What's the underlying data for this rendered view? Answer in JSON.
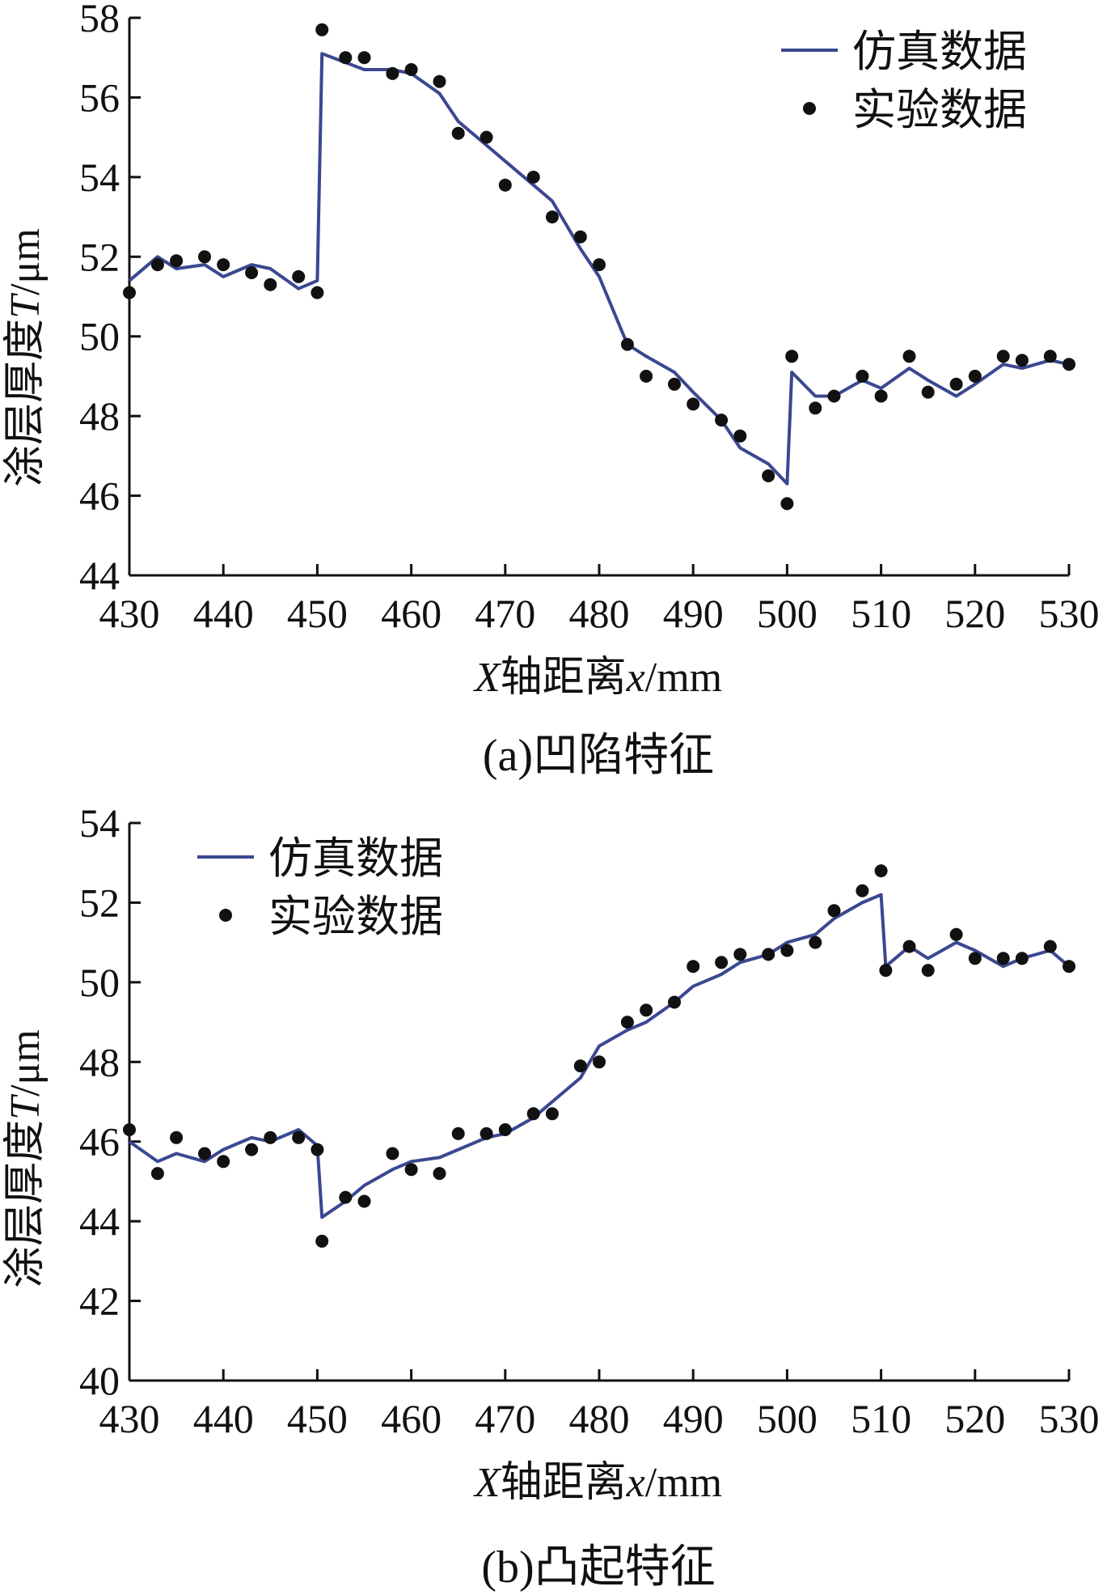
{
  "figure": {
    "colors": {
      "simulation": "#3b4790",
      "experiment": "#111111",
      "axis": "#111111"
    }
  },
  "chart_data": [
    {
      "type": "line",
      "id": "a",
      "caption": "(a)凹陷特征",
      "xlabel_parts": {
        "var": "X",
        "mid": "轴距离",
        "var2": "x",
        "unit": "/mm"
      },
      "ylabel_parts": {
        "prefix": "涂层厚度",
        "var": "T",
        "unit": "/μm"
      },
      "xlim": [
        430,
        530
      ],
      "ylim": [
        44,
        58
      ],
      "xticks": [
        430,
        440,
        450,
        460,
        470,
        480,
        490,
        500,
        510,
        520,
        530
      ],
      "yticks": [
        44,
        46,
        48,
        50,
        52,
        54,
        56,
        58
      ],
      "legend_position": "top-right",
      "legend": {
        "line": "仿真数据",
        "points": "实验数据"
      },
      "series": [
        {
          "name": "仿真数据",
          "kind": "line",
          "x": [
            430,
            433,
            435,
            438,
            440,
            443,
            445,
            448,
            450,
            450.5,
            455,
            458,
            460,
            463,
            465,
            468,
            470,
            473,
            475,
            478,
            480,
            483,
            485,
            488,
            490,
            493,
            495,
            498,
            500,
            500.5,
            503,
            505,
            508,
            510,
            513,
            515,
            518,
            520,
            523,
            525,
            528,
            530
          ],
          "y": [
            51.4,
            52.0,
            51.7,
            51.8,
            51.5,
            51.8,
            51.7,
            51.2,
            51.4,
            57.1,
            56.7,
            56.7,
            56.6,
            56.1,
            55.4,
            54.8,
            54.4,
            53.8,
            53.4,
            52.2,
            51.5,
            49.8,
            49.5,
            49.1,
            48.6,
            47.9,
            47.2,
            46.8,
            46.3,
            49.1,
            48.5,
            48.5,
            48.9,
            48.7,
            49.2,
            48.9,
            48.5,
            48.8,
            49.3,
            49.2,
            49.4,
            49.3
          ]
        },
        {
          "name": "实验数据",
          "kind": "scatter",
          "x": [
            430,
            433,
            435,
            438,
            440,
            443,
            445,
            448,
            450,
            450.5,
            453,
            455,
            458,
            460,
            463,
            465,
            468,
            470,
            473,
            475,
            478,
            480,
            483,
            485,
            488,
            490,
            493,
            495,
            498,
            500,
            500.5,
            503,
            505,
            508,
            510,
            513,
            515,
            518,
            520,
            523,
            525,
            528,
            530
          ],
          "y": [
            51.1,
            51.8,
            51.9,
            52.0,
            51.8,
            51.6,
            51.3,
            51.5,
            51.1,
            57.7,
            57.0,
            57.0,
            56.6,
            56.7,
            56.4,
            55.1,
            55.0,
            53.8,
            54.0,
            53.0,
            52.5,
            51.8,
            49.8,
            49.0,
            48.8,
            48.3,
            47.9,
            47.5,
            46.5,
            45.8,
            49.5,
            48.2,
            48.5,
            49.0,
            48.5,
            49.5,
            48.6,
            48.8,
            49.0,
            49.5,
            49.4,
            49.5,
            49.3
          ]
        }
      ]
    },
    {
      "type": "line",
      "id": "b",
      "caption": "(b)凸起特征",
      "xlabel_parts": {
        "var": "X",
        "mid": "轴距离",
        "var2": "x",
        "unit": "/mm"
      },
      "ylabel_parts": {
        "prefix": "涂层厚度",
        "var": "T",
        "unit": "/μm"
      },
      "xlim": [
        430,
        530
      ],
      "ylim": [
        40,
        54
      ],
      "xticks": [
        430,
        440,
        450,
        460,
        470,
        480,
        490,
        500,
        510,
        520,
        530
      ],
      "yticks": [
        40,
        42,
        44,
        46,
        48,
        50,
        52,
        54
      ],
      "legend_position": "top-left",
      "legend": {
        "line": "仿真数据",
        "points": "实验数据"
      },
      "series": [
        {
          "name": "仿真数据",
          "kind": "line",
          "x": [
            430,
            433,
            435,
            438,
            440,
            443,
            445,
            448,
            450,
            450.5,
            453,
            455,
            458,
            460,
            463,
            465,
            468,
            470,
            473,
            475,
            478,
            480,
            483,
            485,
            488,
            490,
            493,
            495,
            498,
            500,
            503,
            505,
            508,
            510,
            510.5,
            513,
            515,
            518,
            520,
            523,
            525,
            528,
            530
          ],
          "y": [
            46.0,
            45.5,
            45.7,
            45.5,
            45.8,
            46.1,
            46.0,
            46.3,
            45.9,
            44.1,
            44.5,
            44.9,
            45.3,
            45.5,
            45.6,
            45.8,
            46.1,
            46.2,
            46.6,
            47.0,
            47.6,
            48.4,
            48.8,
            49.0,
            49.5,
            49.9,
            50.2,
            50.5,
            50.7,
            51.0,
            51.2,
            51.6,
            52.0,
            52.2,
            50.4,
            50.9,
            50.6,
            51.0,
            50.8,
            50.4,
            50.6,
            50.8,
            50.4
          ]
        },
        {
          "name": "实验数据",
          "kind": "scatter",
          "x": [
            430,
            433,
            435,
            438,
            440,
            443,
            445,
            448,
            450,
            450.5,
            453,
            455,
            458,
            460,
            463,
            465,
            468,
            470,
            473,
            475,
            478,
            480,
            483,
            485,
            488,
            490,
            493,
            495,
            498,
            500,
            503,
            505,
            508,
            510,
            510.5,
            513,
            515,
            518,
            520,
            523,
            525,
            528,
            530
          ],
          "y": [
            46.3,
            45.2,
            46.1,
            45.7,
            45.5,
            45.8,
            46.1,
            46.1,
            45.8,
            43.5,
            44.6,
            44.5,
            45.7,
            45.3,
            45.2,
            46.2,
            46.2,
            46.3,
            46.7,
            46.7,
            47.9,
            48.0,
            49.0,
            49.3,
            49.5,
            50.4,
            50.5,
            50.7,
            50.7,
            50.8,
            51.0,
            51.8,
            52.3,
            52.8,
            50.3,
            50.9,
            50.3,
            51.2,
            50.6,
            50.6,
            50.6,
            50.9,
            50.4
          ]
        }
      ]
    }
  ]
}
